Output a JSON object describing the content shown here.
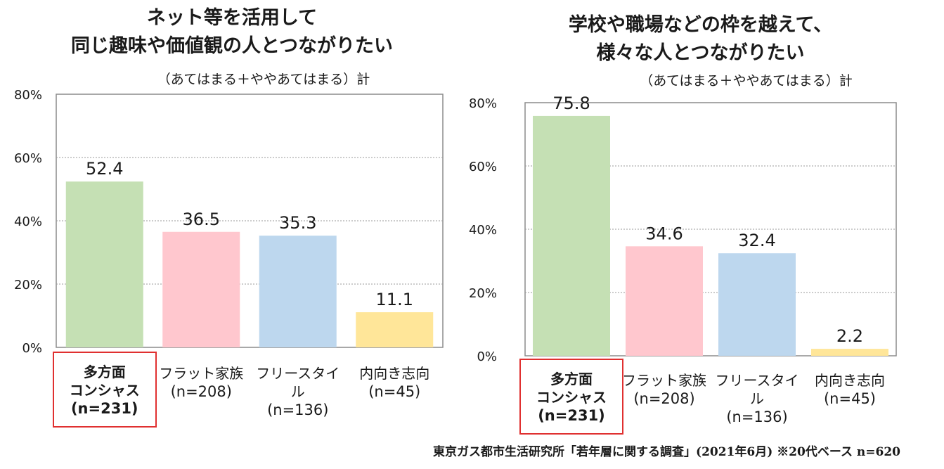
{
  "footnote": "東京ガス都市生活研究所「若年層に関する調査」(2021年6月) ※20代ベース n=620",
  "chart_data": [
    {
      "type": "bar",
      "title_lines": [
        "ネット等を活用して",
        "同じ趣味や価値観の人とつながりたい"
      ],
      "subtitle": "（あてはまる＋ややあてはまる）計",
      "categories": [
        {
          "lines": [
            "多方面",
            "コンシャス"
          ],
          "n": "(n=231)",
          "highlight": true
        },
        {
          "lines": [
            "フラット家族"
          ],
          "n": "(n=208)",
          "highlight": false
        },
        {
          "lines": [
            "フリースタイル"
          ],
          "n": "(n=136)",
          "highlight": false
        },
        {
          "lines": [
            "内向き志向"
          ],
          "n": "(n=45)",
          "highlight": false
        }
      ],
      "values": [
        52.4,
        36.5,
        35.3,
        11.1
      ],
      "value_labels": [
        "52.4",
        "36.5",
        "35.3",
        "11.1"
      ],
      "colors": [
        "#c5e0b4",
        "#ffc7ce",
        "#bdd7ee",
        "#ffe699"
      ],
      "ylim": [
        0,
        80
      ],
      "yticks": [
        "0%",
        "20%",
        "40%",
        "60%",
        "80%"
      ],
      "grid": true
    },
    {
      "type": "bar",
      "title_lines": [
        "学校や職場などの枠を越えて、",
        "様々な人とつながりたい"
      ],
      "subtitle": "（あてはまる＋ややあてはまる）計",
      "categories": [
        {
          "lines": [
            "多方面",
            "コンシャス"
          ],
          "n": "(n=231)",
          "highlight": true
        },
        {
          "lines": [
            "フラット家族"
          ],
          "n": "(n=208)",
          "highlight": false
        },
        {
          "lines": [
            "フリースタイル"
          ],
          "n": "(n=136)",
          "highlight": false
        },
        {
          "lines": [
            "内向き志向"
          ],
          "n": "(n=45)",
          "highlight": false
        }
      ],
      "values": [
        75.8,
        34.6,
        32.4,
        2.2
      ],
      "value_labels": [
        "75.8",
        "34.6",
        "32.4",
        "2.2"
      ],
      "colors": [
        "#c5e0b4",
        "#ffc7ce",
        "#bdd7ee",
        "#ffe699"
      ],
      "ylim": [
        0,
        80
      ],
      "yticks": [
        "0%",
        "20%",
        "40%",
        "60%",
        "80%"
      ],
      "grid": true
    }
  ]
}
